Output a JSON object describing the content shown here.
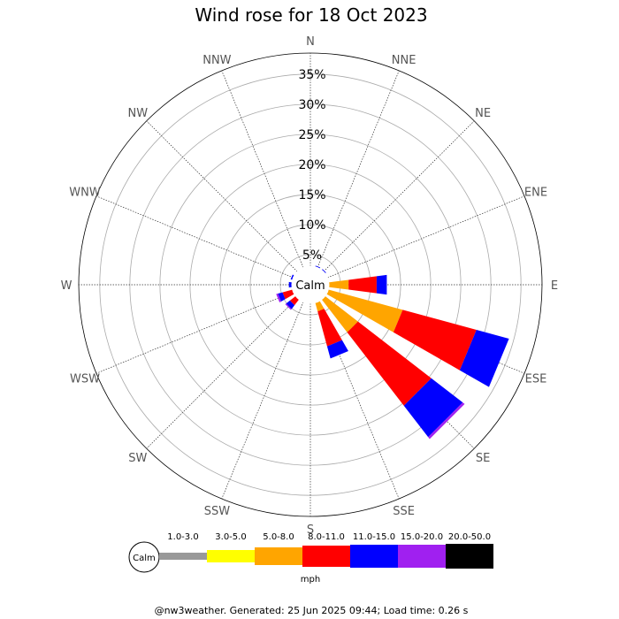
{
  "chart_data": {
    "type": "wind_rose",
    "title": "Wind rose for 18 Oct 2023",
    "directions": [
      "N",
      "NNE",
      "NE",
      "ENE",
      "E",
      "ESE",
      "SE",
      "SSE",
      "S",
      "SSW",
      "SW",
      "WSW",
      "W",
      "WNW",
      "NW",
      "NNW"
    ],
    "rings": [
      5,
      10,
      15,
      20,
      25,
      30,
      35
    ],
    "ring_labels": [
      "5%",
      "10%",
      "15%",
      "20%",
      "25%",
      "30%",
      "35%"
    ],
    "calm_label": "Calm",
    "unit": "mph",
    "speed_bins": [
      "1.0-3.0",
      "3.0-5.0",
      "5.0-8.0",
      "8.0-11.0",
      "11.0-15.0",
      "15.0-20.0",
      "20.0-50.0"
    ],
    "bin_colors": [
      "#999999",
      "#ffff00",
      "#ffa500",
      "#ff0000",
      "#0000ff",
      "#a020f0",
      "#000000"
    ],
    "calm_radius_pct": 2.2,
    "sectors": [
      {
        "dir": "N",
        "cumulative": [
          0.2,
          0.4,
          0.8,
          1.2,
          1.6,
          1.6,
          1.6
        ]
      },
      {
        "dir": "NNE",
        "cumulative": [
          0.3,
          0.6,
          1.4,
          2.3,
          3.3,
          3.3,
          3.3
        ]
      },
      {
        "dir": "NE",
        "cumulative": [
          0.3,
          0.6,
          1.4,
          2.3,
          3.3,
          3.3,
          3.3
        ]
      },
      {
        "dir": "ENE",
        "cumulative": [
          0.3,
          0.5,
          1.0,
          1.6,
          2.0,
          2.0,
          2.0
        ]
      },
      {
        "dir": "E",
        "cumulative": [
          0.3,
          0.6,
          6.4,
          11.1,
          12.8,
          12.8,
          12.8
        ]
      },
      {
        "dir": "ESE",
        "cumulative": [
          0.4,
          0.8,
          15.9,
          28.6,
          34.2,
          34.2,
          34.2
        ]
      },
      {
        "dir": "SE",
        "cumulative": [
          0.5,
          1.1,
          10.0,
          25.4,
          32.0,
          32.4,
          32.4
        ]
      },
      {
        "dir": "SSE",
        "cumulative": [
          0.5,
          1.0,
          4.6,
          10.6,
          12.7,
          12.7,
          12.7
        ]
      },
      {
        "dir": "S",
        "cumulative": [
          0.3,
          0.6,
          2.1,
          2.9,
          3.1,
          3.1,
          3.1
        ]
      },
      {
        "dir": "SSW",
        "cumulative": [
          0.2,
          0.4,
          2.0,
          2.8,
          3.0,
          3.0,
          3.0
        ]
      },
      {
        "dir": "SW",
        "cumulative": [
          0.3,
          0.6,
          2.4,
          4.3,
          5.1,
          5.3,
          5.3
        ]
      },
      {
        "dir": "WSW",
        "cumulative": [
          0.3,
          0.6,
          2.4,
          4.8,
          5.6,
          5.9,
          5.9
        ]
      },
      {
        "dir": "W",
        "cumulative": [
          0.3,
          0.6,
          1.6,
          2.8,
          3.6,
          3.6,
          3.6
        ]
      },
      {
        "dir": "WNW",
        "cumulative": [
          0.3,
          0.6,
          1.5,
          2.6,
          3.4,
          3.4,
          3.4
        ]
      },
      {
        "dir": "NW",
        "cumulative": [
          0.2,
          0.4,
          0.9,
          1.5,
          2.0,
          2.0,
          2.0
        ]
      },
      {
        "dir": "NNW",
        "cumulative": [
          0.2,
          0.4,
          0.9,
          1.6,
          2.0,
          2.0,
          2.0
        ]
      }
    ]
  },
  "footer": "@nw3weather. Generated: 25 Jun 2025 09:44; Load time: 0.26 s"
}
